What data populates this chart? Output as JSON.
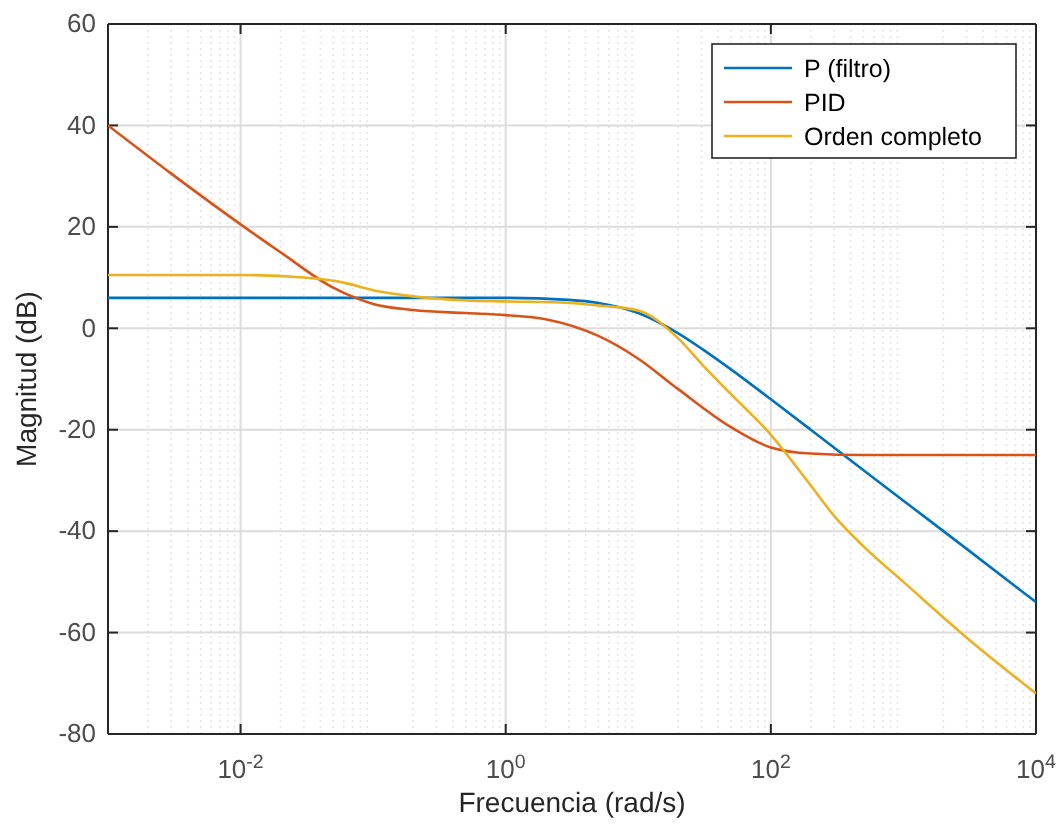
{
  "chart_data": {
    "type": "line",
    "xlabel": "Frecuencia  (rad/s)",
    "ylabel": "Magnitud (dB)",
    "log": "x",
    "xlim": [
      0.001,
      10000
    ],
    "ylim": [
      -80,
      60
    ],
    "xticks": [
      {
        "value": 0.01,
        "label": "10$^{-2}$"
      },
      {
        "value": 1,
        "label": "10$^{0}$"
      },
      {
        "value": 100,
        "label": "10$^{2}$"
      },
      {
        "value": 10000,
        "label": "10$^{4}$"
      }
    ],
    "yticks": [
      -80,
      -60,
      -40,
      -20,
      0,
      20,
      40,
      60
    ],
    "grid": true,
    "legend": "top right",
    "line_style": "solid",
    "marker": "none",
    "series": [
      {
        "name": "P (filtro)",
        "color": "#0072bd",
        "x": [
          0.001,
          0.1,
          1,
          3,
          5,
          10,
          20,
          30,
          50,
          100,
          200,
          500,
          1000,
          3000,
          10000
        ],
        "values": [
          6,
          6,
          6,
          5.6,
          5,
          3,
          -1,
          -4,
          -8.1,
          -14,
          -20,
          -28,
          -34,
          -43.5,
          -54
        ]
      },
      {
        "name": "PID",
        "color": "#d95319",
        "x": [
          0.001,
          0.003,
          0.01,
          0.02,
          0.05,
          0.1,
          0.2,
          0.5,
          1,
          2,
          5,
          10,
          20,
          50,
          100,
          200,
          500,
          10000
        ],
        "values": [
          40,
          30.5,
          20.5,
          15,
          8,
          4.8,
          3.6,
          3,
          2.6,
          1.8,
          -1.5,
          -6,
          -12,
          -19.5,
          -23.5,
          -24.7,
          -25,
          -25
        ]
      },
      {
        "name": "Orden completo",
        "color": "#edb120",
        "x": [
          0.001,
          0.01,
          0.03,
          0.06,
          0.1,
          0.2,
          0.5,
          1,
          3,
          5,
          10,
          20,
          30,
          50,
          100,
          200,
          300,
          500,
          1000,
          3000,
          10000
        ],
        "values": [
          10.5,
          10.5,
          10,
          9,
          7.5,
          6.3,
          5.5,
          5.3,
          5,
          4.5,
          3.5,
          -2,
          -7,
          -13,
          -21,
          -31,
          -37,
          -43,
          -50,
          -61,
          -72
        ]
      }
    ]
  }
}
